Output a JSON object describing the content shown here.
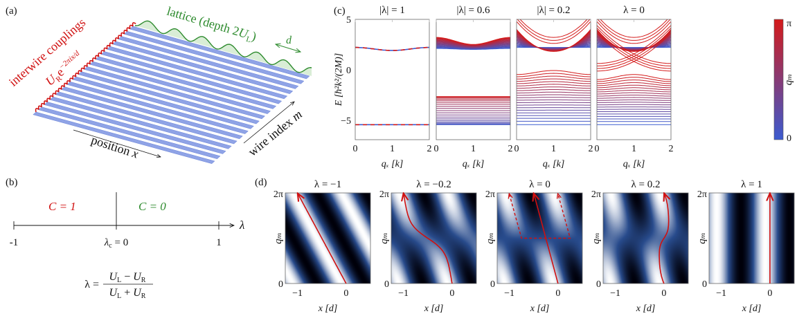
{
  "panel_labels": {
    "a": "(a)",
    "b": "(b)",
    "c": "(c)",
    "d": "(d)"
  },
  "a": {
    "couplings_label": "interwire couplings",
    "coupling_U": "U",
    "coupling_sub": "R",
    "coupling_exp": "e",
    "coupling_sup": "−2πix/d",
    "lattice_label": "lattice (depth 2",
    "lattice_U": "U",
    "lattice_sub": "L",
    "lattice_close": ")",
    "period": "d",
    "position_label": "position ",
    "position_var": "x",
    "wire_label": "wire index ",
    "wire_var": "m",
    "colors": {
      "wires": "#8fa3e6",
      "couplings": "#d01010",
      "lattice": "#2e8b2e"
    }
  },
  "b": {
    "left_phase": "C = 1",
    "right_phase": "C = 0",
    "axis_var": "λ",
    "tick_left": "-1",
    "tick_mid_var": "λ",
    "tick_mid_sub": "c",
    "tick_mid_val": " = 0",
    "tick_right": "1",
    "formula_lhs": "λ =",
    "formula_num": [
      "U",
      "L",
      " − ",
      "U",
      "R"
    ],
    "formula_den": [
      "U",
      "L",
      " + ",
      "U",
      "R"
    ],
    "colors": {
      "left_phase": "#d01010",
      "right_phase": "#2e8b2e"
    }
  },
  "c": {
    "titles": [
      "|λ| = 1",
      "|λ| = 0.6",
      "|λ| = 0.2",
      "λ = 0"
    ],
    "lambda_values": [
      1,
      0.6,
      0.2,
      0
    ],
    "ylabel": "E [ħ²k²/(2M)]",
    "y_ticks": [
      "5",
      "0",
      "−5"
    ],
    "x_ticks": [
      "0",
      "1",
      "2"
    ],
    "xlabel": "qₓ [k]",
    "colorbar": {
      "top": "π",
      "bottom": "0",
      "label": "qₘ",
      "low_color": "#3b5bd0",
      "high_color": "#d41a1a"
    }
  },
  "d": {
    "titles": [
      "λ = −1",
      "λ = −0.2",
      "λ = 0",
      "λ = 0.2",
      "λ = 1"
    ],
    "lambda_values": [
      -1,
      -0.2,
      0,
      0.2,
      1
    ],
    "ylabel": "qₘ",
    "y_ticks": [
      "2π",
      "0"
    ],
    "x_ticks": [
      "−1",
      "0"
    ],
    "xlabel": "x [d]",
    "colors": {
      "path": "#d01010",
      "colormap": [
        "#00000a",
        "#284b8c",
        "#ffffff"
      ]
    }
  }
}
